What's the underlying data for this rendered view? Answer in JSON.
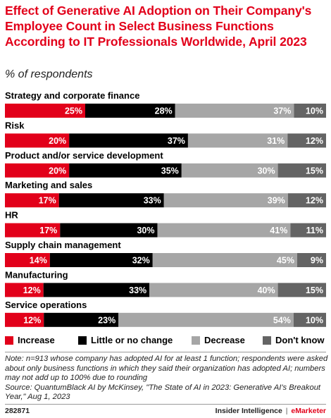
{
  "header": {
    "title": "Effect of Generative AI Adoption on Their Company's Employee Count in Select Business Functions According to IT Professionals Worldwide, April 2023",
    "subtitle": "% of respondents"
  },
  "chart_data": {
    "type": "bar",
    "orientation": "horizontal",
    "stacked": true,
    "title": "Effect of Generative AI Adoption on Their Company's Employee Count in Select Business Functions According to IT Professionals Worldwide, April 2023",
    "subtitle": "% of respondents",
    "unit": "%",
    "categories": [
      "Strategy and corporate finance",
      "Risk",
      "Product and/or service development",
      "Marketing and sales",
      "HR",
      "Supply chain management",
      "Manufacturing",
      "Service operations"
    ],
    "series": [
      {
        "name": "Increase",
        "color": "#e2001a",
        "label_color": "#ffffff",
        "values": [
          25,
          20,
          20,
          17,
          17,
          14,
          12,
          12
        ]
      },
      {
        "name": "Little or no change",
        "color": "#000000",
        "label_color": "#ffffff",
        "values": [
          28,
          37,
          35,
          33,
          30,
          32,
          33,
          23
        ]
      },
      {
        "name": "Decrease",
        "color": "#a6a6a6",
        "label_color": "#ffffff",
        "values": [
          37,
          31,
          30,
          39,
          41,
          45,
          40,
          54
        ]
      },
      {
        "name": "Don't know",
        "color": "#646464",
        "label_color": "#ffffff",
        "values": [
          10,
          12,
          15,
          12,
          11,
          9,
          15,
          10
        ]
      }
    ],
    "legend_position": "bottom",
    "grid": false
  },
  "legend": {
    "items": [
      {
        "label": "Increase",
        "color": "#e2001a"
      },
      {
        "label": "Little or no change",
        "color": "#000000"
      },
      {
        "label": "Decrease",
        "color": "#a6a6a6"
      },
      {
        "label": "Don't know",
        "color": "#646464"
      }
    ]
  },
  "footer": {
    "note": "Note: n=913 whose company has adopted AI for at least 1 function; respondents were asked about only business functions in which they said their organization has adopted AI; numbers may not add up to 100% due to rounding",
    "source": "Source: QuantumBlack AI by McKinsey, \"The State of AI in 2023: Generative AI's Breakout Year,\" Aug 1, 2023",
    "id": "282871",
    "brand_left": "Insider Intelligence",
    "brand_sep": "|",
    "brand_right": "eMarketer"
  }
}
